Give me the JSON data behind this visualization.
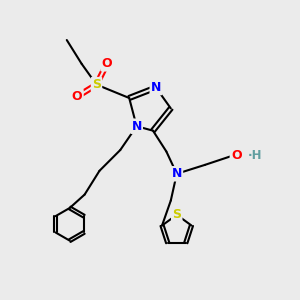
{
  "background_color": "#ebebeb",
  "atom_colors": {
    "N": "#0000ff",
    "S": "#cccc00",
    "O": "#ff0000",
    "C": "#000000",
    "H": "#5f9ea0"
  },
  "bond_color": "#000000"
}
